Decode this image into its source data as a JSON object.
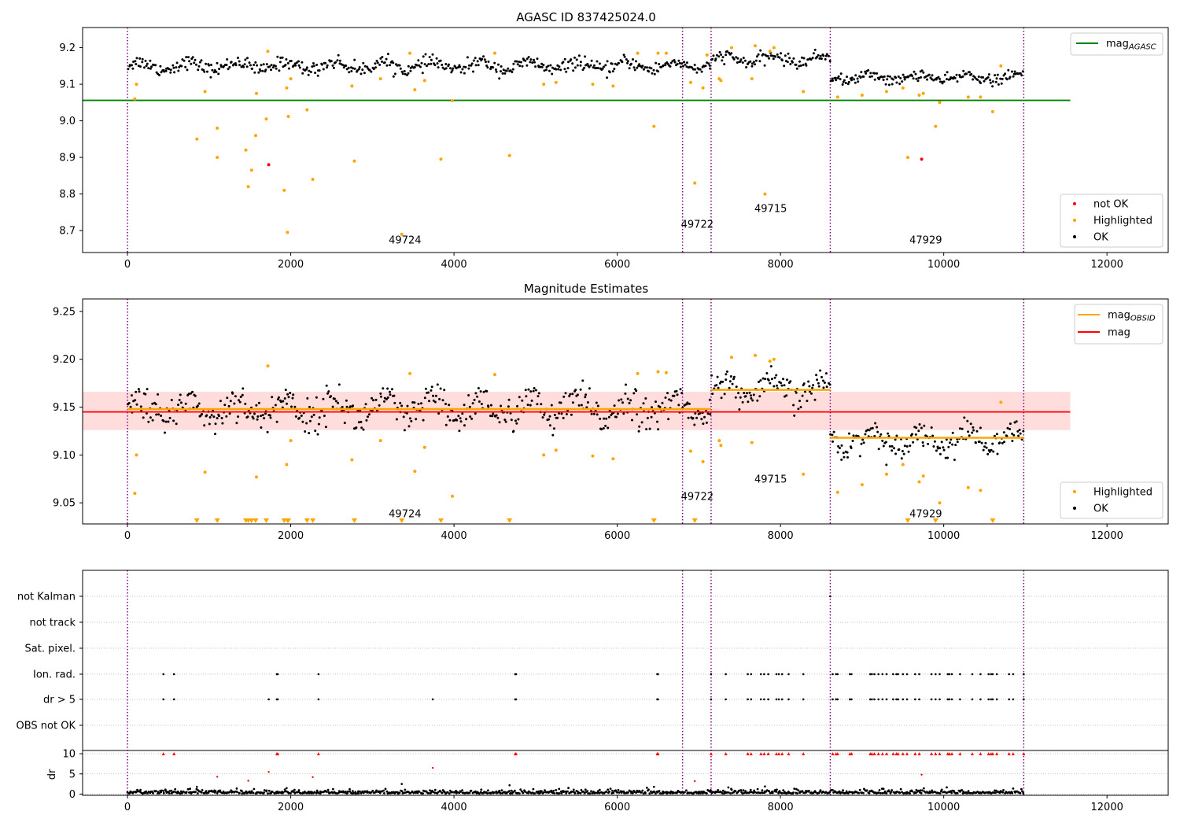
{
  "chart_data": [
    {
      "type": "scatter",
      "title": "AGASC ID 837425024.0",
      "xlim": [
        -550,
        12750
      ],
      "ylim": [
        8.64,
        9.255
      ],
      "xticks": [
        0,
        2000,
        4000,
        6000,
        8000,
        10000,
        12000
      ],
      "yticks": [
        8.7,
        8.8,
        8.9,
        9.0,
        9.1,
        9.2
      ],
      "ytick_labels": [
        "8.7",
        "8.8",
        "8.9",
        "9.0",
        "9.1",
        "9.2"
      ],
      "obsid_boundaries": [
        0,
        6800,
        7150,
        8610,
        10980
      ],
      "obsid_labels": [
        {
          "text": "49724",
          "x": 3400,
          "y": 8.665
        },
        {
          "text": "49722",
          "x": 6980,
          "y": 8.708
        },
        {
          "text": "49715",
          "x": 7880,
          "y": 8.751
        },
        {
          "text": "47929",
          "x": 9780,
          "y": 8.665
        }
      ],
      "segments_ok": [
        {
          "x0": 0,
          "x1": 6800,
          "mean": 9.15,
          "spread": 0.02
        },
        {
          "x0": 6800,
          "x1": 7150,
          "mean": 9.15,
          "spread": 0.015
        },
        {
          "x0": 7150,
          "x1": 8610,
          "mean": 9.168,
          "spread": 0.018
        },
        {
          "x0": 8610,
          "x1": 10980,
          "mean": 9.118,
          "spread": 0.016
        }
      ],
      "lines": [
        {
          "name": "mag_AGASC",
          "y": 9.056,
          "x0": -550,
          "x1": 11550,
          "color": "#008000"
        }
      ],
      "highlighted": [
        [
          90,
          9.06
        ],
        [
          110,
          9.1
        ],
        [
          950,
          9.08
        ],
        [
          850,
          8.95
        ],
        [
          1100,
          8.98
        ],
        [
          1100,
          8.9
        ],
        [
          1450,
          8.92
        ],
        [
          1480,
          8.82
        ],
        [
          1520,
          8.865
        ],
        [
          1570,
          8.96
        ],
        [
          1580,
          9.075
        ],
        [
          1700,
          9.005
        ],
        [
          1720,
          9.19
        ],
        [
          1920,
          8.81
        ],
        [
          1950,
          9.09
        ],
        [
          1960,
          8.695
        ],
        [
          1970,
          9.012
        ],
        [
          2000,
          9.115
        ],
        [
          2200,
          9.03
        ],
        [
          2270,
          8.84
        ],
        [
          2750,
          9.095
        ],
        [
          2780,
          8.89
        ],
        [
          3100,
          9.115
        ],
        [
          3360,
          8.69
        ],
        [
          3460,
          9.185
        ],
        [
          3520,
          9.085
        ],
        [
          3640,
          9.11
        ],
        [
          3840,
          8.895
        ],
        [
          3980,
          9.055
        ],
        [
          4500,
          9.185
        ],
        [
          4680,
          8.905
        ],
        [
          5100,
          9.1
        ],
        [
          5250,
          9.105
        ],
        [
          5700,
          9.1
        ],
        [
          5950,
          9.095
        ],
        [
          6250,
          9.185
        ],
        [
          6450,
          8.985
        ],
        [
          6500,
          9.185
        ],
        [
          6600,
          9.185
        ],
        [
          6900,
          9.105
        ],
        [
          6950,
          8.83
        ],
        [
          7050,
          9.09
        ],
        [
          7100,
          9.18
        ],
        [
          7250,
          9.115
        ],
        [
          7270,
          9.11
        ],
        [
          7400,
          9.2
        ],
        [
          7650,
          9.115
        ],
        [
          7690,
          9.205
        ],
        [
          7810,
          8.8
        ],
        [
          7870,
          9.19
        ],
        [
          7920,
          9.2
        ],
        [
          8280,
          9.08
        ],
        [
          8700,
          9.065
        ],
        [
          9000,
          9.07
        ],
        [
          9300,
          9.08
        ],
        [
          9500,
          9.09
        ],
        [
          9560,
          8.9
        ],
        [
          9700,
          9.07
        ],
        [
          9750,
          9.075
        ],
        [
          9900,
          8.985
        ],
        [
          9950,
          9.05
        ],
        [
          10300,
          9.065
        ],
        [
          10450,
          9.065
        ],
        [
          10600,
          9.025
        ],
        [
          10700,
          9.15
        ]
      ],
      "not_ok": [
        [
          1730,
          8.88
        ],
        [
          9730,
          8.895
        ]
      ],
      "legend_upper": [
        {
          "label": "mag",
          "sub": "AGASC",
          "color": "#008000",
          "kind": "line"
        }
      ],
      "legend_lower": [
        {
          "label": "not OK",
          "color": "#ff0000",
          "kind": "dot"
        },
        {
          "label": "Highlighted",
          "color": "#ffa500",
          "kind": "dot"
        },
        {
          "label": "OK",
          "color": "#000000",
          "kind": "dot"
        }
      ]
    },
    {
      "type": "scatter",
      "title": "Magnitude Estimates",
      "xlim": [
        -550,
        12750
      ],
      "ylim": [
        9.028,
        9.263
      ],
      "xticks": [
        0,
        2000,
        4000,
        6000,
        8000,
        10000,
        12000
      ],
      "yticks": [
        9.05,
        9.1,
        9.15,
        9.2,
        9.25
      ],
      "ytick_labels": [
        "9.05",
        "9.10",
        "9.15",
        "9.20",
        "9.25"
      ],
      "obsid_boundaries": [
        0,
        6800,
        7150,
        8610,
        10980
      ],
      "obsid_labels": [
        {
          "text": "49724",
          "x": 3400,
          "y": 9.035
        },
        {
          "text": "49722",
          "x": 6980,
          "y": 9.053
        },
        {
          "text": "49715",
          "x": 7880,
          "y": 9.071
        },
        {
          "text": "47929",
          "x": 9780,
          "y": 9.035
        }
      ],
      "segments_ok": [
        {
          "x0": 0,
          "x1": 6800,
          "mean": 9.148,
          "spread": 0.02
        },
        {
          "x0": 6800,
          "x1": 7150,
          "mean": 9.148,
          "spread": 0.012
        },
        {
          "x0": 7150,
          "x1": 8610,
          "mean": 9.168,
          "spread": 0.016
        },
        {
          "x0": 8610,
          "x1": 10980,
          "mean": 9.116,
          "spread": 0.015
        }
      ],
      "band": {
        "y0": 9.126,
        "y1": 9.166,
        "x0": -550,
        "x1": 11550,
        "color": "#ffdddd"
      },
      "lines": [
        {
          "name": "mag",
          "y": 9.145,
          "x0": -550,
          "x1": 11550,
          "color": "#ff0000"
        }
      ],
      "obsid_means": [
        {
          "x0": 0,
          "x1": 6800,
          "y": 9.148
        },
        {
          "x0": 6800,
          "x1": 7150,
          "y": 9.148
        },
        {
          "x0": 7150,
          "x1": 8610,
          "y": 9.168
        },
        {
          "x0": 8610,
          "x1": 10980,
          "y": 9.118
        }
      ],
      "highlighted": [
        [
          90,
          9.06
        ],
        [
          110,
          9.1
        ],
        [
          950,
          9.082
        ],
        [
          1720,
          9.193
        ],
        [
          1580,
          9.077
        ],
        [
          1950,
          9.09
        ],
        [
          2000,
          9.115
        ],
        [
          2750,
          9.095
        ],
        [
          3100,
          9.115
        ],
        [
          3460,
          9.185
        ],
        [
          3520,
          9.083
        ],
        [
          3640,
          9.108
        ],
        [
          3980,
          9.057
        ],
        [
          4500,
          9.184
        ],
        [
          5100,
          9.1
        ],
        [
          5250,
          9.105
        ],
        [
          5700,
          9.099
        ],
        [
          5950,
          9.096
        ],
        [
          6250,
          9.185
        ],
        [
          6500,
          9.187
        ],
        [
          6600,
          9.186
        ],
        [
          6900,
          9.104
        ],
        [
          7050,
          9.093
        ],
        [
          7250,
          9.115
        ],
        [
          7270,
          9.11
        ],
        [
          7400,
          9.202
        ],
        [
          7650,
          9.113
        ],
        [
          7690,
          9.204
        ],
        [
          7870,
          9.198
        ],
        [
          7920,
          9.2
        ],
        [
          8280,
          9.08
        ],
        [
          8700,
          9.061
        ],
        [
          9000,
          9.069
        ],
        [
          9300,
          9.08
        ],
        [
          9500,
          9.09
        ],
        [
          9700,
          9.072
        ],
        [
          9750,
          9.078
        ],
        [
          9950,
          9.05
        ],
        [
          10300,
          9.066
        ],
        [
          10450,
          9.063
        ],
        [
          10700,
          9.155
        ]
      ],
      "highlighted_lower_limit": [
        850,
        1100,
        1450,
        1480,
        1520,
        1570,
        1700,
        1920,
        1960,
        1970,
        2200,
        2270,
        2780,
        3360,
        3840,
        4680,
        6450,
        6950,
        9560,
        9900,
        10600
      ],
      "legend_upper": [
        {
          "label": "mag",
          "sub": "OBSID",
          "color": "#ffa500",
          "kind": "line"
        },
        {
          "label": "mag",
          "sub": "",
          "color": "#ff0000",
          "kind": "line"
        }
      ],
      "legend_lower": [
        {
          "label": "Highlighted",
          "color": "#ffa500",
          "kind": "dot"
        },
        {
          "label": "OK",
          "color": "#000000",
          "kind": "dot"
        }
      ]
    },
    {
      "type": "scatter",
      "title": "",
      "xlim": [
        -550,
        12750
      ],
      "xticks": [
        0,
        2000,
        4000,
        6000,
        8000,
        10000,
        12000
      ],
      "flag_rows": [
        "not Kalman",
        "not track",
        "Sat. pixel.",
        "Ion. rad.",
        "dr > 5",
        "OBS not OK"
      ],
      "obsid_boundaries": [
        0,
        6800,
        7150,
        8610,
        10980
      ],
      "flag_ion_rad": [
        440,
        570,
        1830,
        1840,
        2340,
        4750,
        4760,
        6490,
        6500,
        7150,
        7330,
        7600,
        7640,
        7760,
        7800,
        7850,
        7950,
        7980,
        8020,
        8100,
        8280,
        8640,
        8680,
        8700,
        8850,
        8870,
        9100,
        9120,
        9150,
        9200,
        9250,
        9300,
        9380,
        9420,
        9440,
        9500,
        9550,
        9650,
        9700,
        9850,
        9900,
        9950,
        10050,
        10070,
        10100,
        10200,
        10350,
        10450,
        10550,
        10580,
        10600,
        10650,
        10800,
        10850,
        10980
      ],
      "flag_dr5": [
        440,
        570,
        1730,
        1830,
        1840,
        2340,
        3740,
        4750,
        4760,
        6490,
        6500,
        7150,
        7330,
        7600,
        7640,
        7760,
        7800,
        7850,
        7950,
        7980,
        8020,
        8100,
        8280,
        8640,
        8680,
        8700,
        8850,
        8870,
        9100,
        9120,
        9150,
        9200,
        9250,
        9300,
        9380,
        9420,
        9440,
        9500,
        9550,
        9650,
        9700,
        9850,
        9900,
        9950,
        10050,
        10070,
        10100,
        10200,
        10350,
        10450,
        10550,
        10580,
        10600,
        10650,
        10800,
        10850,
        10980
      ],
      "flag_not_kalman": [
        8610
      ],
      "dr_ylim": [
        -0.3,
        10.8
      ],
      "dr_yticks": [
        0,
        5,
        10
      ],
      "dr_ytick_labels": [
        "0",
        "5",
        "10"
      ],
      "dr_ylabel": "dr",
      "dr_capped": [
        440,
        570,
        1830,
        1840,
        2340,
        4750,
        4760,
        6490,
        6500,
        7150,
        7330,
        7600,
        7640,
        7760,
        7800,
        7850,
        7950,
        7980,
        8020,
        8100,
        8280,
        8640,
        8680,
        8700,
        8850,
        8870,
        9100,
        9120,
        9150,
        9200,
        9250,
        9300,
        9380,
        9420,
        9440,
        9500,
        9550,
        9650,
        9700,
        9850,
        9900,
        9950,
        10050,
        10070,
        10100,
        10200,
        10350,
        10450,
        10550,
        10580,
        10600,
        10650,
        10800,
        10850,
        10980
      ],
      "dr_red_points": [
        [
          1100,
          4.3
        ],
        [
          1480,
          3.3
        ],
        [
          1730,
          5.5
        ],
        [
          2270,
          4.2
        ],
        [
          3740,
          6.5
        ],
        [
          6950,
          3.2
        ],
        [
          9730,
          4.8
        ]
      ],
      "dr_black_outliers": [
        [
          850,
          1.8
        ],
        [
          1950,
          1.5
        ],
        [
          3360,
          2.5
        ],
        [
          4680,
          2.2
        ],
        [
          6450,
          1.8
        ],
        [
          7810,
          1.9
        ]
      ]
    }
  ]
}
